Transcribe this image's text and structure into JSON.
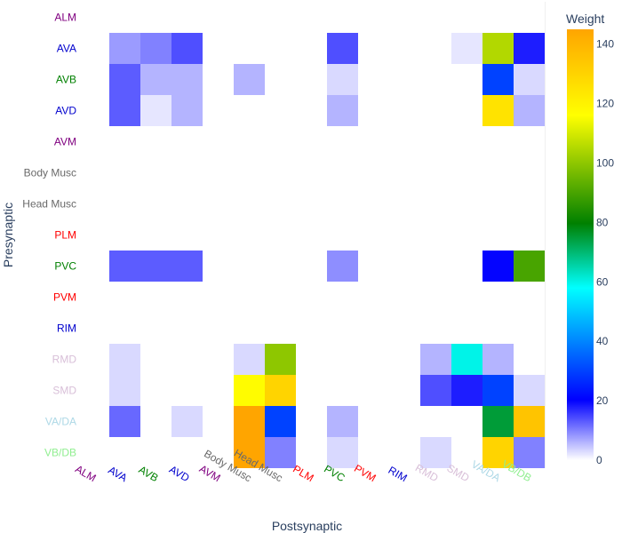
{
  "chart_data": {
    "type": "heatmap",
    "xlabel": "Postsynaptic",
    "ylabel": "Presynaptic",
    "x": [
      "ALM",
      "AVA",
      "AVB",
      "AVD",
      "AVM",
      "Body Musc",
      "Head Musc",
      "PLM",
      "PVC",
      "PVM",
      "RIM",
      "RMD",
      "SMD",
      "VA/DA",
      "VB/DB"
    ],
    "y": [
      "ALM",
      "AVA",
      "AVB",
      "AVD",
      "AVM",
      "Body Musc",
      "Head Musc",
      "PLM",
      "PVC",
      "PVM",
      "RIM",
      "RMD",
      "SMD",
      "VA/DA",
      "VB/DB"
    ],
    "label_colors": {
      "ALM": "#800080",
      "AVA": "#0000cd",
      "AVB": "#008000",
      "AVD": "#0000cd",
      "AVM": "#800080",
      "Body Musc": "#696969",
      "Head Musc": "#696969",
      "PLM": "#ff0000",
      "PVC": "#008000",
      "PVM": "#ff0000",
      "RIM": "#0000cd",
      "RMD": "#d8bfd8",
      "SMD": "#d8bfd8",
      "VA/DA": "#add8e6",
      "VB/DB": "#90ee90"
    },
    "z": [
      [
        0,
        0,
        0,
        0,
        0,
        0,
        0,
        0,
        0,
        0,
        0,
        0,
        0,
        0,
        0
      ],
      [
        0,
        8,
        10,
        14,
        0,
        0,
        0,
        0,
        14,
        0,
        0,
        0,
        2,
        105,
        18
      ],
      [
        0,
        13,
        6,
        6,
        0,
        6,
        0,
        0,
        3,
        0,
        0,
        0,
        0,
        30,
        3
      ],
      [
        0,
        13,
        2,
        6,
        0,
        0,
        0,
        0,
        6,
        0,
        0,
        0,
        0,
        125,
        6
      ],
      [
        0,
        0,
        0,
        0,
        0,
        0,
        0,
        0,
        0,
        0,
        0,
        0,
        0,
        0,
        0
      ],
      [
        0,
        0,
        0,
        0,
        0,
        0,
        0,
        0,
        0,
        0,
        0,
        0,
        0,
        0,
        0
      ],
      [
        0,
        0,
        0,
        0,
        0,
        0,
        0,
        0,
        0,
        0,
        0,
        0,
        0,
        0,
        0
      ],
      [
        0,
        0,
        0,
        0,
        0,
        0,
        0,
        0,
        0,
        0,
        0,
        0,
        0,
        0,
        0
      ],
      [
        0,
        13,
        13,
        13,
        0,
        0,
        0,
        0,
        9,
        0,
        0,
        0,
        0,
        20,
        90
      ],
      [
        0,
        0,
        0,
        0,
        0,
        0,
        0,
        0,
        0,
        0,
        0,
        0,
        0,
        0,
        0
      ],
      [
        0,
        0,
        0,
        0,
        0,
        0,
        0,
        0,
        0,
        0,
        0,
        0,
        0,
        0,
        0
      ],
      [
        0,
        3,
        0,
        0,
        0,
        3,
        100,
        0,
        0,
        0,
        0,
        6,
        60,
        6,
        0
      ],
      [
        0,
        3,
        0,
        0,
        0,
        117,
        130,
        0,
        0,
        0,
        0,
        14,
        18,
        30,
        3
      ],
      [
        0,
        12,
        0,
        3,
        0,
        145,
        30,
        0,
        6,
        0,
        0,
        0,
        0,
        75,
        135
      ],
      [
        0,
        0,
        0,
        0,
        0,
        152,
        10,
        0,
        3,
        0,
        0,
        3,
        0,
        130,
        10
      ]
    ],
    "zmin": 0,
    "zmax": 145,
    "colorbar": {
      "title": "Weight",
      "tickvals": [
        0,
        20,
        40,
        60,
        80,
        100,
        120,
        140
      ],
      "colorscale": [
        [
          0,
          "#ffffff"
        ],
        [
          0.14,
          "#0000ff"
        ],
        [
          0.4,
          "#00ffff"
        ],
        [
          0.55,
          "#008000"
        ],
        [
          0.8,
          "#ffff00"
        ],
        [
          1,
          "#ffa500"
        ]
      ]
    },
    "grid": false
  }
}
